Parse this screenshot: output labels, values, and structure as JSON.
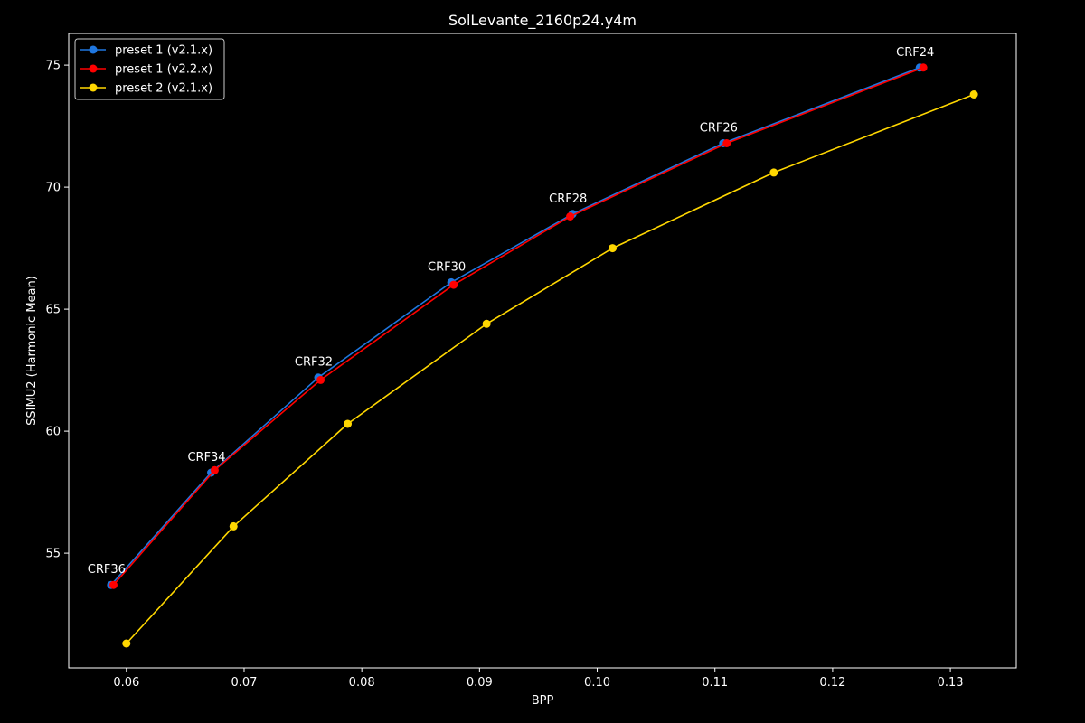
{
  "chart_data": {
    "type": "line",
    "title": "SolLevante_2160p24.y4m",
    "xlabel": "BPP",
    "ylabel": "SSIMU2 (Harmonic Mean)",
    "xlim": [
      0.0551,
      0.1356
    ],
    "ylim": [
      50.3,
      76.3
    ],
    "xticks": [
      "0.06",
      "0.07",
      "0.08",
      "0.09",
      "0.10",
      "0.11",
      "0.12",
      "0.13"
    ],
    "yticks": [
      "55",
      "60",
      "65",
      "70",
      "75"
    ],
    "grid": false,
    "legend_position": "top-left",
    "background": "#000000",
    "series": [
      {
        "name": "preset 1 (v2.1.x)",
        "color": "#1f77e0",
        "x": [
          0.0587,
          0.0672,
          0.0763,
          0.0876,
          0.0979,
          0.1107,
          0.1274
        ],
        "y": [
          53.7,
          58.3,
          62.2,
          66.1,
          68.9,
          71.8,
          74.9
        ]
      },
      {
        "name": "preset 1 (v2.2.x)",
        "color": "#ff0000",
        "x": [
          0.0589,
          0.0675,
          0.0765,
          0.0878,
          0.0977,
          0.111,
          0.1277
        ],
        "y": [
          53.7,
          58.4,
          62.1,
          66.0,
          68.8,
          71.8,
          74.9
        ]
      },
      {
        "name": "preset 2 (v2.1.x)",
        "color": "#ffd700",
        "x": [
          0.06,
          0.0691,
          0.0788,
          0.0906,
          0.1013,
          0.115,
          0.132
        ],
        "y": [
          51.3,
          56.1,
          60.3,
          64.4,
          67.5,
          70.6,
          73.8
        ]
      }
    ],
    "annotations": [
      {
        "text": "CRF36",
        "x": 0.0587,
        "y": 53.7
      },
      {
        "text": "CRF34",
        "x": 0.0672,
        "y": 58.3
      },
      {
        "text": "CRF32",
        "x": 0.0763,
        "y": 62.2
      },
      {
        "text": "CRF30",
        "x": 0.0876,
        "y": 66.1
      },
      {
        "text": "CRF28",
        "x": 0.0979,
        "y": 68.9
      },
      {
        "text": "CRF26",
        "x": 0.1107,
        "y": 71.8
      },
      {
        "text": "CRF24",
        "x": 0.1274,
        "y": 74.9
      }
    ]
  }
}
